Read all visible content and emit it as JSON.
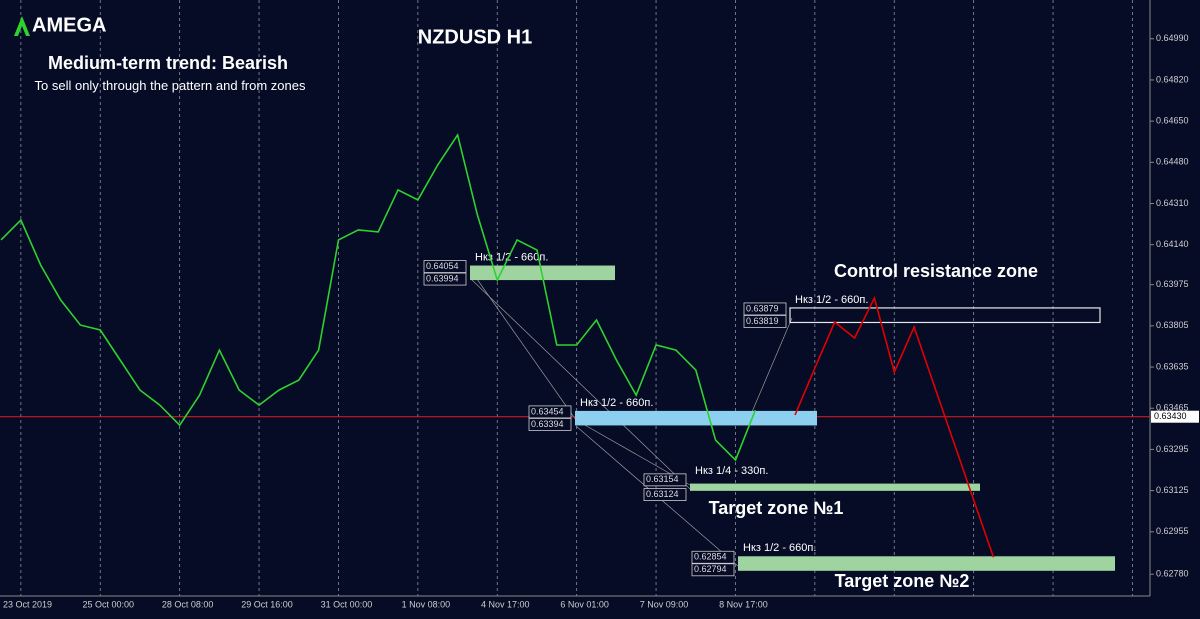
{
  "logo": "AMEGA",
  "chart_data": {
    "type": "line",
    "title": "NZDUSD H1",
    "subtitle": "Medium-term trend: Bearish",
    "note": "To sell only through the pattern and from zones",
    "annotations": [
      "Control resistance zone",
      "Target zone №1",
      "Target zone №2"
    ],
    "categories": [
      null,
      "23 Oct 2019",
      null,
      null,
      null,
      "25 Oct 00:00",
      null,
      null,
      null,
      "28 Oct 08:00",
      null,
      null,
      null,
      "29 Oct 16:00",
      null,
      null,
      null,
      "31 Oct 00:00",
      null,
      null,
      null,
      "1 Nov 08:00",
      null,
      null,
      null,
      "4 Nov 17:00",
      null,
      null,
      null,
      "6 Nov 01:00",
      null,
      null,
      null,
      "7 Nov 09:00",
      null,
      null,
      null,
      "8 Nov 17:00",
      null,
      null,
      null,
      null,
      null,
      null,
      null,
      null,
      null,
      null,
      null,
      null,
      null,
      null,
      null,
      null,
      null,
      null,
      null,
      null
    ],
    "series": [
      {
        "color": "#2fd12f",
        "values": [
          0.6416,
          0.64242,
          0.64056,
          0.63912,
          0.63808,
          0.63788,
          0.63664,
          0.6354,
          0.63478,
          0.63395,
          0.63519,
          0.63705,
          0.6354,
          0.63478,
          0.6354,
          0.63581,
          0.63705,
          0.6416,
          0.64201,
          0.64193,
          0.64366,
          0.64325,
          0.64469,
          0.64593,
          0.64263,
          0.63994,
          0.6416,
          0.64118,
          0.63726,
          0.63726,
          0.63829,
          0.63664,
          0.63519,
          0.63726,
          0.63705,
          0.63623,
          0.63333,
          0.63251,
          0.63457,
          null,
          null,
          null,
          null,
          null,
          null,
          null,
          null,
          null,
          null,
          null,
          null,
          null,
          null,
          null,
          null,
          null,
          null,
          null
        ]
      },
      {
        "color": "#e00000",
        "values": [
          null,
          null,
          null,
          null,
          null,
          null,
          null,
          null,
          null,
          null,
          null,
          null,
          null,
          null,
          null,
          null,
          null,
          null,
          null,
          null,
          null,
          null,
          null,
          null,
          null,
          null,
          null,
          null,
          null,
          null,
          null,
          null,
          null,
          null,
          null,
          null,
          null,
          null,
          null,
          null,
          0.63437,
          0.63631,
          0.63821,
          0.63755,
          0.6392,
          0.63614,
          0.638,
          0.63561,
          0.63325,
          0.63086,
          0.6285,
          null,
          null,
          null,
          null,
          null,
          null,
          null
        ]
      }
    ],
    "zones": [
      {
        "label": "Нкз 1/2 - 660п.",
        "color": "#9fd39f",
        "values": [
          0.64054,
          0.63994
        ],
        "value_labels": [
          "0.64054",
          "0.63994"
        ]
      },
      {
        "label": "Нкз 1/2 - 660п.",
        "color": "none",
        "values": [
          0.63879,
          0.63819
        ],
        "value_labels": [
          "0.63879",
          "0.63819"
        ]
      },
      {
        "label": "Нкз 1/2 - 660п.",
        "color": "#8ccfee",
        "values": [
          0.63454,
          0.63394
        ],
        "value_labels": [
          "0.63454",
          "0.63394"
        ]
      },
      {
        "label": "Нкз 1/4 - 330п.",
        "color": "#9fd39f",
        "values": [
          0.63154,
          0.63124
        ],
        "value_labels": [
          "0.63154",
          "0.63124"
        ]
      },
      {
        "label": "Нкз 1/2 - 660п.",
        "color": "#9fd39f",
        "values": [
          0.62854,
          0.62794
        ],
        "value_labels": [
          "0.62854",
          "0.62794"
        ]
      }
    ],
    "current_price": {
      "value": 0.6343,
      "label": "0.63430"
    },
    "ylim": [
      0.6269,
      0.6515
    ],
    "yticks": [
      {
        "value": 0.6499,
        "label": "0.64990"
      },
      {
        "value": 0.6482,
        "label": "0.64820"
      },
      {
        "value": 0.6465,
        "label": "0.64650"
      },
      {
        "value": 0.6448,
        "label": "0.64480"
      },
      {
        "value": 0.6431,
        "label": "0.64310"
      },
      {
        "value": 0.6414,
        "label": "0.64140"
      },
      {
        "value": 0.63975,
        "label": "0.63975"
      },
      {
        "value": 0.63805,
        "label": "0.63805"
      },
      {
        "value": 0.63635,
        "label": "0.63635"
      },
      {
        "value": 0.63465,
        "label": "0.63465"
      },
      {
        "value": 0.63295,
        "label": "0.63295"
      },
      {
        "value": 0.63125,
        "label": "0.63125"
      },
      {
        "value": 0.62955,
        "label": "0.62955"
      },
      {
        "value": 0.6278,
        "label": "0.62780"
      }
    ]
  }
}
